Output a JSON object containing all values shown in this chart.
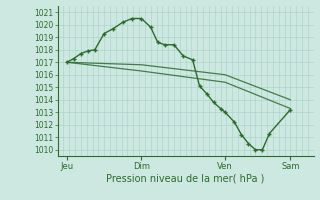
{
  "bg_color": "#cce8e0",
  "grid_color": "#b0d4cc",
  "line_color": "#2d6b2d",
  "marker_color": "#2d6b2d",
  "xlabel": "Pression niveau de la mer( hPa )",
  "ylim": [
    1009.5,
    1021.5
  ],
  "yticks": [
    1010,
    1011,
    1012,
    1013,
    1014,
    1015,
    1016,
    1017,
    1018,
    1019,
    1020,
    1021
  ],
  "xtick_labels": [
    "Jeu",
    "Dim",
    "Ven",
    "Sam"
  ],
  "xtick_positions": [
    8,
    72,
    144,
    200
  ],
  "xlim": [
    0,
    220
  ],
  "n_vgrid": 44,
  "series1": {
    "x": [
      8,
      14,
      20,
      26,
      32,
      40,
      48,
      56,
      64,
      72,
      80,
      86,
      92,
      100,
      108,
      116,
      122,
      128,
      134,
      140,
      144,
      152,
      158,
      164,
      170,
      176,
      182,
      200
    ],
    "y": [
      1017.0,
      1017.3,
      1017.7,
      1017.9,
      1018.0,
      1019.3,
      1019.7,
      1020.2,
      1020.5,
      1020.5,
      1019.8,
      1018.6,
      1018.4,
      1018.4,
      1017.5,
      1017.2,
      1015.1,
      1014.5,
      1013.8,
      1013.3,
      1013.0,
      1012.2,
      1011.2,
      1010.5,
      1010.0,
      1010.0,
      1011.3,
      1013.2
    ]
  },
  "series2": {
    "x": [
      8,
      72,
      144,
      200
    ],
    "y": [
      1017.0,
      1016.3,
      1015.4,
      1013.3
    ]
  },
  "series3": {
    "x": [
      8,
      72,
      144,
      200
    ],
    "y": [
      1017.0,
      1016.8,
      1016.0,
      1014.0
    ]
  }
}
